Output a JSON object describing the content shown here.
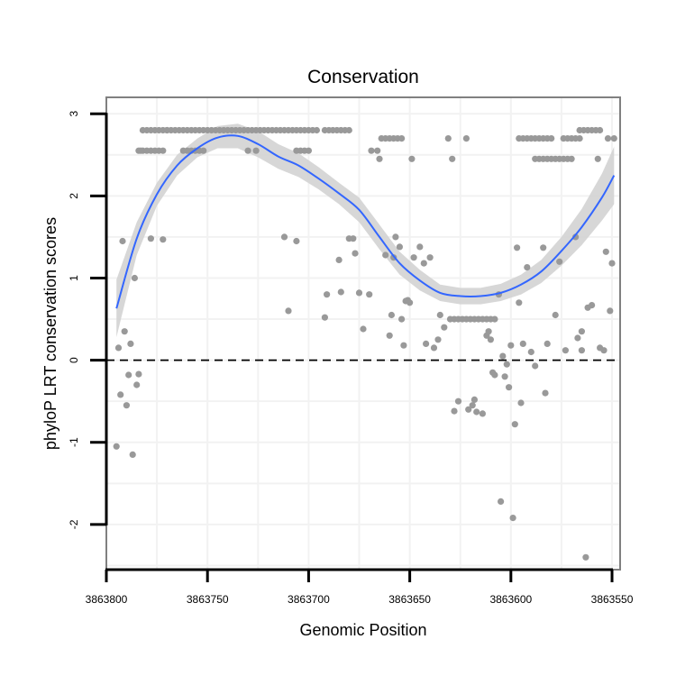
{
  "chart_data": {
    "type": "scatter",
    "title": "Conservation",
    "xlabel": "Genomic Position",
    "ylabel": "phyloP LRT conservation scores",
    "x_reversed": true,
    "xlim": [
      3863546,
      3863800
    ],
    "ylim": [
      -2.55,
      3.2
    ],
    "xticks": [
      3863800,
      3863750,
      3863700,
      3863650,
      3863600,
      3863550
    ],
    "xtick_labels": [
      "3863800",
      "3863750",
      "3863700",
      "3863650",
      "3863600",
      "3863550"
    ],
    "yticks": [
      -2,
      -1,
      0,
      1,
      2,
      3
    ],
    "ytick_labels": [
      "-2",
      "-1",
      "0",
      "1",
      "2",
      "3"
    ],
    "reference_line": {
      "y": 0,
      "style": "dashed"
    },
    "colors": {
      "points": "#999999",
      "smooth": "#3366FF",
      "ribbon": "#d3d3d3",
      "grid": "#f2f2f2",
      "frame": "#808080",
      "refline": "#000000"
    },
    "point_groups": [
      {
        "name": "band-2.8a",
        "x_from": 3863782,
        "x_to": 3863696,
        "step": 2,
        "y": 2.8
      },
      {
        "name": "band-2.8b",
        "x_from": 3863692,
        "x_to": 3863680,
        "step": 2,
        "y": 2.8
      },
      {
        "name": "band-2.8c",
        "x_from": 3863566,
        "x_to": 3863556,
        "step": 2,
        "y": 2.8
      },
      {
        "name": "band-2.55a",
        "x_from": 3863784,
        "x_to": 3863772,
        "step": 2,
        "y": 2.55
      },
      {
        "name": "band-2.55b",
        "x_from": 3863762,
        "x_to": 3863752,
        "step": 2,
        "y": 2.55
      },
      {
        "name": "band-2.55c",
        "x_from": 3863706,
        "x_to": 3863700,
        "step": 2,
        "y": 2.55
      },
      {
        "name": "band-2.7a",
        "x_from": 3863664,
        "x_to": 3863654,
        "step": 2,
        "y": 2.7
      },
      {
        "name": "band-2.7b",
        "x_from": 3863596,
        "x_to": 3863580,
        "step": 2,
        "y": 2.7
      },
      {
        "name": "band-2.7c",
        "x_from": 3863574,
        "x_to": 3863566,
        "step": 2,
        "y": 2.7
      },
      {
        "name": "band-2.45a",
        "x_from": 3863588,
        "x_to": 3863570,
        "step": 2,
        "y": 2.45
      },
      {
        "name": "band-0.5",
        "x_from": 3863630,
        "x_to": 3863608,
        "step": 2,
        "y": 0.5
      }
    ],
    "points": [
      [
        3863795,
        -1.05
      ],
      [
        3863794,
        0.15
      ],
      [
        3863793,
        -0.42
      ],
      [
        3863792,
        1.45
      ],
      [
        3863791,
        0.35
      ],
      [
        3863790,
        -0.55
      ],
      [
        3863789,
        -0.18
      ],
      [
        3863788,
        0.2
      ],
      [
        3863787,
        -1.15
      ],
      [
        3863786,
        1.0
      ],
      [
        3863785,
        -0.3
      ],
      [
        3863784,
        -0.17
      ],
      [
        3863783,
        2.55
      ],
      [
        3863778,
        1.48
      ],
      [
        3863772,
        1.47
      ],
      [
        3863770,
        2.8
      ],
      [
        3863730,
        2.55
      ],
      [
        3863726,
        2.55
      ],
      [
        3863712,
        1.5
      ],
      [
        3863710,
        0.6
      ],
      [
        3863706,
        1.45
      ],
      [
        3863692,
        0.52
      ],
      [
        3863691,
        0.8
      ],
      [
        3863685,
        1.22
      ],
      [
        3863684,
        0.83
      ],
      [
        3863680,
        1.48
      ],
      [
        3863678,
        1.48
      ],
      [
        3863677,
        1.3
      ],
      [
        3863675,
        0.82
      ],
      [
        3863673,
        0.38
      ],
      [
        3863670,
        0.8
      ],
      [
        3863669,
        2.55
      ],
      [
        3863666,
        2.55
      ],
      [
        3863665,
        2.45
      ],
      [
        3863662,
        1.28
      ],
      [
        3863659,
        0.55
      ],
      [
        3863660,
        0.3
      ],
      [
        3863658,
        1.25
      ],
      [
        3863657,
        1.5
      ],
      [
        3863655,
        1.38
      ],
      [
        3863654,
        0.5
      ],
      [
        3863653,
        0.18
      ],
      [
        3863652,
        0.72
      ],
      [
        3863651,
        0.73
      ],
      [
        3863650,
        0.7
      ],
      [
        3863649,
        2.45
      ],
      [
        3863648,
        1.25
      ],
      [
        3863645,
        1.38
      ],
      [
        3863643,
        1.18
      ],
      [
        3863642,
        0.2
      ],
      [
        3863640,
        1.25
      ],
      [
        3863638,
        0.15
      ],
      [
        3863636,
        0.25
      ],
      [
        3863635,
        0.55
      ],
      [
        3863633,
        0.4
      ],
      [
        3863631,
        2.7
      ],
      [
        3863629,
        2.45
      ],
      [
        3863628,
        -0.62
      ],
      [
        3863626,
        -0.5
      ],
      [
        3863622,
        2.7
      ],
      [
        3863621,
        -0.6
      ],
      [
        3863619,
        -0.55
      ],
      [
        3863618,
        -0.48
      ],
      [
        3863617,
        -0.63
      ],
      [
        3863614,
        -0.65
      ],
      [
        3863612,
        0.3
      ],
      [
        3863611,
        0.35
      ],
      [
        3863610,
        0.25
      ],
      [
        3863609,
        -0.15
      ],
      [
        3863608,
        -0.18
      ],
      [
        3863606,
        0.8
      ],
      [
        3863605,
        -1.72
      ],
      [
        3863604,
        0.05
      ],
      [
        3863603,
        -0.2
      ],
      [
        3863602,
        -0.05
      ],
      [
        3863601,
        -0.33
      ],
      [
        3863600,
        0.18
      ],
      [
        3863599,
        -1.92
      ],
      [
        3863598,
        -0.78
      ],
      [
        3863597,
        1.37
      ],
      [
        3863596,
        0.7
      ],
      [
        3863595,
        -0.52
      ],
      [
        3863594,
        0.2
      ],
      [
        3863592,
        1.13
      ],
      [
        3863590,
        0.1
      ],
      [
        3863588,
        -0.07
      ],
      [
        3863584,
        1.37
      ],
      [
        3863583,
        -0.4
      ],
      [
        3863582,
        0.2
      ],
      [
        3863578,
        0.55
      ],
      [
        3863576,
        1.2
      ],
      [
        3863573,
        0.12
      ],
      [
        3863568,
        1.5
      ],
      [
        3863567,
        0.27
      ],
      [
        3863565,
        0.12
      ],
      [
        3863565,
        0.35
      ],
      [
        3863563,
        -2.4
      ],
      [
        3863562,
        0.64
      ],
      [
        3863560,
        0.67
      ],
      [
        3863557,
        2.45
      ],
      [
        3863556,
        0.15
      ],
      [
        3863554,
        0.12
      ],
      [
        3863553,
        1.32
      ],
      [
        3863552,
        2.7
      ],
      [
        3863551,
        0.6
      ],
      [
        3863550,
        1.18
      ],
      [
        3863549,
        2.7
      ]
    ],
    "smooth": {
      "x": [
        3863795,
        3863785,
        3863775,
        3863765,
        3863755,
        3863745,
        3863735,
        3863725,
        3863715,
        3863705,
        3863695,
        3863685,
        3863675,
        3863665,
        3863655,
        3863645,
        3863635,
        3863625,
        3863615,
        3863605,
        3863595,
        3863585,
        3863575,
        3863565,
        3863555,
        3863549
      ],
      "y": [
        0.63,
        1.48,
        2.02,
        2.37,
        2.58,
        2.71,
        2.73,
        2.63,
        2.48,
        2.37,
        2.21,
        2.03,
        1.83,
        1.5,
        1.18,
        0.97,
        0.82,
        0.78,
        0.78,
        0.82,
        0.92,
        1.08,
        1.33,
        1.62,
        1.98,
        2.25
      ],
      "ribbon_lo": [
        0.28,
        1.28,
        1.88,
        2.25,
        2.47,
        2.58,
        2.58,
        2.47,
        2.33,
        2.23,
        2.08,
        1.9,
        1.68,
        1.35,
        1.04,
        0.85,
        0.72,
        0.68,
        0.68,
        0.72,
        0.8,
        0.94,
        1.15,
        1.4,
        1.7,
        1.9
      ],
      "ribbon_hi": [
        0.98,
        1.68,
        2.16,
        2.5,
        2.7,
        2.85,
        2.88,
        2.79,
        2.63,
        2.52,
        2.35,
        2.16,
        1.98,
        1.65,
        1.32,
        1.1,
        0.92,
        0.88,
        0.88,
        0.93,
        1.04,
        1.22,
        1.5,
        1.84,
        2.27,
        2.6
      ]
    }
  }
}
